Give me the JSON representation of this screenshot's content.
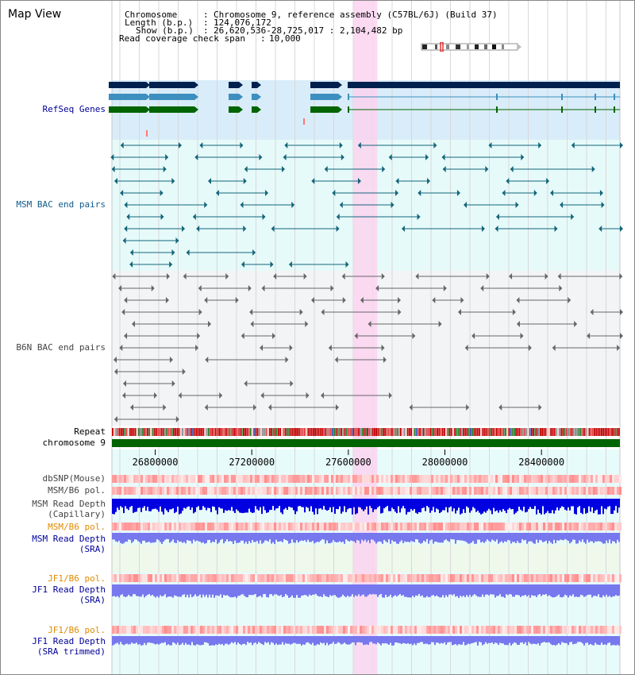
{
  "title": "Map View",
  "info": {
    "chromosome": {
      "label": "Chromosome",
      "value": "Chromosome 9, reference assembly (C57BL/6J) (Build 37)"
    },
    "length": {
      "label": "Length (b.p.)",
      "value": "124,076,172"
    },
    "show": {
      "label": "Show (b.p.)",
      "value": "26,620,536-28,725,017 : 2,104,482 bp"
    },
    "span": {
      "label": "Read coverage check span",
      "value": "10,000"
    }
  },
  "tracks": {
    "refseq": "RefSeq Genes",
    "msm_bac": "MSM BAC end pairs",
    "b6n_bac": "B6N BAC end pairs",
    "repeat": "Repeat",
    "chrom": "chromosome 9",
    "dbsnp": "dbSNP(Mouse)",
    "msm_pol": "MSM/B6 pol.",
    "msm_depth_cap_1": "MSM Read Depth",
    "msm_depth_cap_2": "(Capillary)",
    "msm_pol_sra": "MSM/B6 pol.",
    "msm_depth_sra_1": "MSM Read Depth",
    "msm_depth_sra_2": "(SRA)",
    "jf1_pol": "JF1/B6 pol.",
    "jf1_depth_1": "JF1 Read Depth",
    "jf1_depth_2": "(SRA)",
    "jf1_pol_t": "JF1/B6 pol.",
    "jf1_trim_1": "JF1 Read Depth",
    "jf1_trim_2": "(SRA trimmed)"
  },
  "axis": {
    "ticks": [
      {
        "value": 26800000,
        "label": "26800000"
      },
      {
        "value": 27200000,
        "label": "27200000"
      },
      {
        "value": 27600000,
        "label": "27600000"
      },
      {
        "value": 28000000,
        "label": "28000000"
      },
      {
        "value": 28400000,
        "label": "28400000"
      }
    ],
    "start": 26620536,
    "end": 28725017
  },
  "highlight": {
    "start": 27620000,
    "end": 27720000
  },
  "colors": {
    "refseq_dark": "#00204e",
    "refseq_mid": "#3c8fbf",
    "refseq_green": "#006400",
    "msm_pair": "#13657a",
    "b6n_pair": "#666666",
    "highlight": "#fad3f0",
    "depth_blue": "#0000e0",
    "depth_light": "#7777ee",
    "pol_red": "#ff2020",
    "label_navy": "#000099",
    "label_orange": "#e08a00",
    "label_grey": "#444444",
    "label_teal": "#105a8a"
  }
}
